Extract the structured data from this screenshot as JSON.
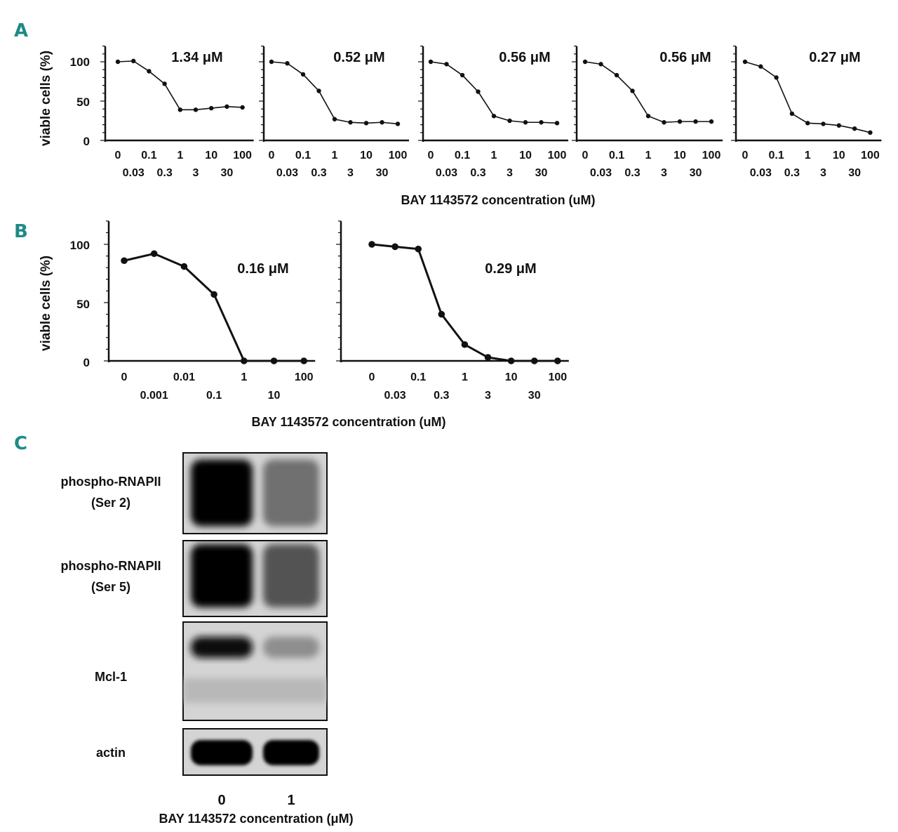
{
  "panels": {
    "a": "A",
    "b": "B",
    "c": "C"
  },
  "ylabel": "viable cells (%)",
  "xlabel_ab": "BAY 1143572 concentration (uM)",
  "xlabel_c": "BAY 1143572 concentration (μM)",
  "y_ticks": [
    "0",
    "50",
    "100"
  ],
  "chart_data": [
    {
      "type": "line",
      "panel": "A",
      "x_ticks_top": [
        "0",
        "0.1",
        "1",
        "10",
        "100"
      ],
      "x_ticks_bottom": [
        "0.03",
        "0.3",
        "3",
        "30"
      ],
      "ylim": [
        0,
        120
      ],
      "annotation": "1.34 μM",
      "x": [
        "0",
        "0.03",
        "0.1",
        "0.3",
        "1",
        "3",
        "10",
        "30",
        "100"
      ],
      "values": [
        100,
        101,
        88,
        72,
        39,
        39,
        41,
        43,
        42
      ]
    },
    {
      "type": "line",
      "panel": "A",
      "x_ticks_top": [
        "0",
        "0.1",
        "1",
        "10",
        "100"
      ],
      "x_ticks_bottom": [
        "0.03",
        "0.3",
        "3",
        "30"
      ],
      "ylim": [
        0,
        120
      ],
      "annotation": "0.52 μM",
      "x": [
        "0",
        "0.03",
        "0.1",
        "0.3",
        "1",
        "3",
        "10",
        "30",
        "100"
      ],
      "values": [
        100,
        98,
        84,
        63,
        27,
        23,
        22,
        23,
        21
      ]
    },
    {
      "type": "line",
      "panel": "A",
      "x_ticks_top": [
        "0",
        "0.1",
        "1",
        "10",
        "100"
      ],
      "x_ticks_bottom": [
        "0.03",
        "0.3",
        "3",
        "30"
      ],
      "ylim": [
        0,
        120
      ],
      "annotation": "0.56 μM",
      "x": [
        "0",
        "0.03",
        "0.1",
        "0.3",
        "1",
        "3",
        "10",
        "30",
        "100"
      ],
      "values": [
        100,
        97,
        83,
        62,
        31,
        25,
        23,
        23,
        22
      ]
    },
    {
      "type": "line",
      "panel": "A",
      "x_ticks_top": [
        "0",
        "0.1",
        "1",
        "10",
        "100"
      ],
      "x_ticks_bottom": [
        "0.03",
        "0.3",
        "3",
        "30"
      ],
      "ylim": [
        0,
        120
      ],
      "annotation": "0.56 μM",
      "x": [
        "0",
        "0.03",
        "0.1",
        "0.3",
        "1",
        "3",
        "10",
        "30",
        "100"
      ],
      "values": [
        100,
        97,
        83,
        63,
        31,
        23,
        24,
        24,
        24
      ]
    },
    {
      "type": "line",
      "panel": "A",
      "x_ticks_top": [
        "0",
        "0.1",
        "1",
        "10",
        "100"
      ],
      "x_ticks_bottom": [
        "0.03",
        "0.3",
        "3",
        "30"
      ],
      "ylim": [
        0,
        120
      ],
      "annotation": "0.27 μM",
      "x": [
        "0",
        "0.03",
        "0.1",
        "0.3",
        "1",
        "3",
        "10",
        "30",
        "100"
      ],
      "values": [
        100,
        94,
        80,
        34,
        22,
        21,
        19,
        15,
        10
      ]
    },
    {
      "type": "line",
      "panel": "B",
      "x_ticks_top": [
        "0",
        "0.01",
        "1",
        "100"
      ],
      "x_ticks_bottom": [
        "0.001",
        "0.1",
        "10"
      ],
      "ylim": [
        0,
        120
      ],
      "annotation": "0.16 μM",
      "x": [
        "0",
        "0.001",
        "0.01",
        "0.1",
        "1",
        "10",
        "100"
      ],
      "values": [
        86,
        92,
        81,
        57,
        0,
        0,
        0
      ]
    },
    {
      "type": "line",
      "panel": "B",
      "x_ticks_top": [
        "0",
        "0.1",
        "1",
        "10",
        "100"
      ],
      "x_ticks_bottom": [
        "0.03",
        "0.3",
        "3",
        "30"
      ],
      "ylim": [
        0,
        120
      ],
      "annotation": "0.29 μM",
      "x": [
        "0",
        "0.03",
        "0.1",
        "0.3",
        "1",
        "3",
        "10",
        "30",
        "100"
      ],
      "values": [
        100,
        98,
        96,
        40,
        14,
        3,
        0,
        0,
        0
      ]
    }
  ],
  "blot": {
    "rows": [
      {
        "label_lines": [
          "phospho-RNAPII",
          "(Ser 2)"
        ],
        "intensity": [
          1.0,
          0.45
        ]
      },
      {
        "label_lines": [
          "phospho-RNAPII",
          "(Ser 5)"
        ],
        "intensity": [
          1.0,
          0.6
        ]
      },
      {
        "label_lines": [
          "Mcl-1"
        ],
        "intensity": [
          0.95,
          0.3
        ]
      },
      {
        "label_lines": [
          "actin"
        ],
        "intensity": [
          1.0,
          1.0
        ]
      }
    ],
    "lanes": [
      "0",
      "1"
    ]
  }
}
